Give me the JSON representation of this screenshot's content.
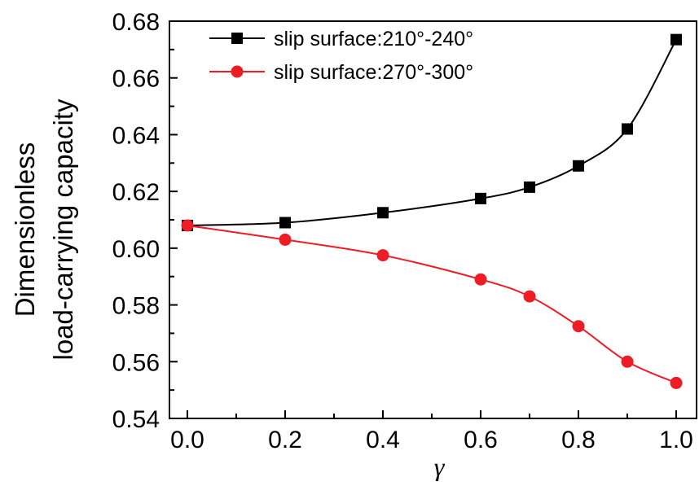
{
  "chart_data": {
    "type": "line",
    "title": "",
    "xlabel": "γ",
    "ylabel_lines": [
      "Dimensionless",
      "load-carrying capacity"
    ],
    "xlim": [
      0,
      1
    ],
    "ylim": [
      0.54,
      0.68
    ],
    "xticks": [
      "0.0",
      "0.2",
      "0.4",
      "0.6",
      "0.8",
      "1.0"
    ],
    "yticks": [
      "0.54",
      "0.56",
      "0.58",
      "0.60",
      "0.62",
      "0.64",
      "0.66",
      "0.68"
    ],
    "grid": false,
    "legend_position": "top-left",
    "series": [
      {
        "name": "slip surface:210°-240°",
        "color": "#000000",
        "marker": "square",
        "x": [
          0.0,
          0.2,
          0.4,
          0.6,
          0.7,
          0.8,
          0.9,
          1.0
        ],
        "y": [
          0.608,
          0.609,
          0.6125,
          0.6175,
          0.6215,
          0.629,
          0.642,
          0.6735
        ]
      },
      {
        "name": "slip surface:270°-300°",
        "color": "#ee1c25",
        "marker": "circle",
        "x": [
          0.0,
          0.2,
          0.4,
          0.6,
          0.7,
          0.8,
          0.9,
          1.0
        ],
        "y": [
          0.608,
          0.603,
          0.5975,
          0.589,
          0.583,
          0.5725,
          0.56,
          0.5525
        ]
      }
    ]
  }
}
